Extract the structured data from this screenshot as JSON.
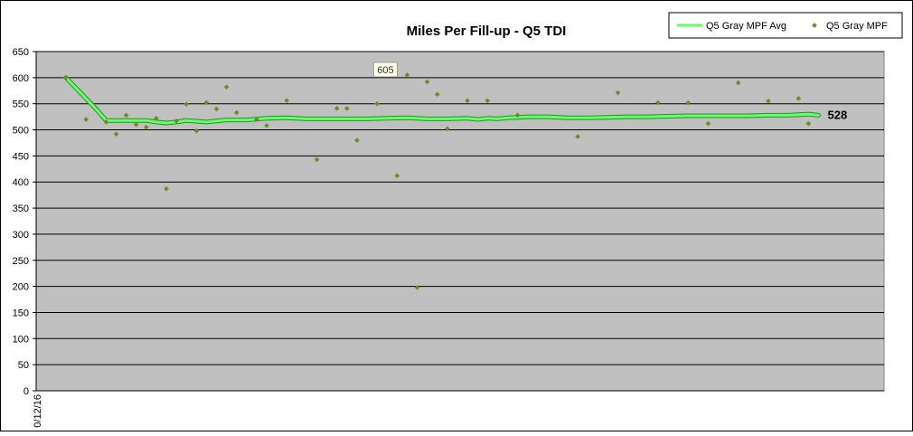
{
  "chart_data": {
    "type": "line",
    "title": "Miles Per Fill-up - Q5 TDI",
    "xlabel": "",
    "ylabel": "",
    "ylim": [
      0,
      650
    ],
    "yticks": [
      0,
      50,
      100,
      150,
      200,
      250,
      300,
      350,
      400,
      450,
      500,
      550,
      600,
      650
    ],
    "x_tick_labels": [
      "0/12/16"
    ],
    "grid": true,
    "legend_position": "top-right",
    "plot_background": "#c0c0c0",
    "series": [
      {
        "name": "Q5 Gray MPF Avg",
        "style": "line",
        "color": "#66ff66",
        "x": [
          0,
          2,
          3,
          4,
          6,
          8,
          9,
          10,
          11,
          12,
          14,
          16,
          18,
          20,
          22,
          24,
          26,
          28,
          30,
          32,
          34,
          36,
          38,
          40,
          41,
          42,
          43,
          44,
          45,
          46,
          48,
          50,
          52,
          54,
          56,
          58,
          60,
          62,
          64,
          66,
          68,
          70,
          72,
          74,
          75
        ],
        "values": [
          600,
          560,
          540,
          518,
          518,
          518,
          515,
          513,
          515,
          518,
          515,
          519,
          519,
          522,
          523,
          521,
          521,
          521,
          521,
          522,
          523,
          521,
          521,
          522,
          520,
          522,
          521,
          523,
          524,
          525,
          525,
          523,
          523,
          524,
          525,
          525,
          526,
          527,
          527,
          527,
          527,
          528,
          528,
          530,
          528
        ]
      },
      {
        "name": "Q5 Gray MPF",
        "style": "markers",
        "color": "#6b8e23",
        "x": [
          0,
          2,
          4,
          5,
          6,
          7,
          8,
          9,
          10,
          11,
          12,
          13,
          14,
          15,
          16,
          17,
          19,
          20,
          22,
          25,
          27,
          28,
          29,
          31,
          33,
          34,
          35,
          36,
          37,
          38,
          40,
          42,
          45,
          51,
          55,
          59,
          62,
          64,
          67,
          70,
          73,
          74
        ],
        "values": [
          600,
          520,
          515,
          492,
          528,
          510,
          505,
          522,
          387,
          517,
          549,
          498,
          552,
          540,
          582,
          533,
          520,
          508,
          556,
          443,
          541,
          541,
          480,
          550,
          412,
          605,
          198,
          592,
          568,
          502,
          556,
          556,
          528,
          487,
          571,
          552,
          552,
          512,
          590,
          555,
          560,
          512
        ]
      }
    ],
    "annotations": [
      {
        "text": "605",
        "type": "data-tooltip",
        "x": 34,
        "y": 605
      },
      {
        "text": "528",
        "type": "end-label",
        "x": 75,
        "y": 528
      }
    ]
  }
}
